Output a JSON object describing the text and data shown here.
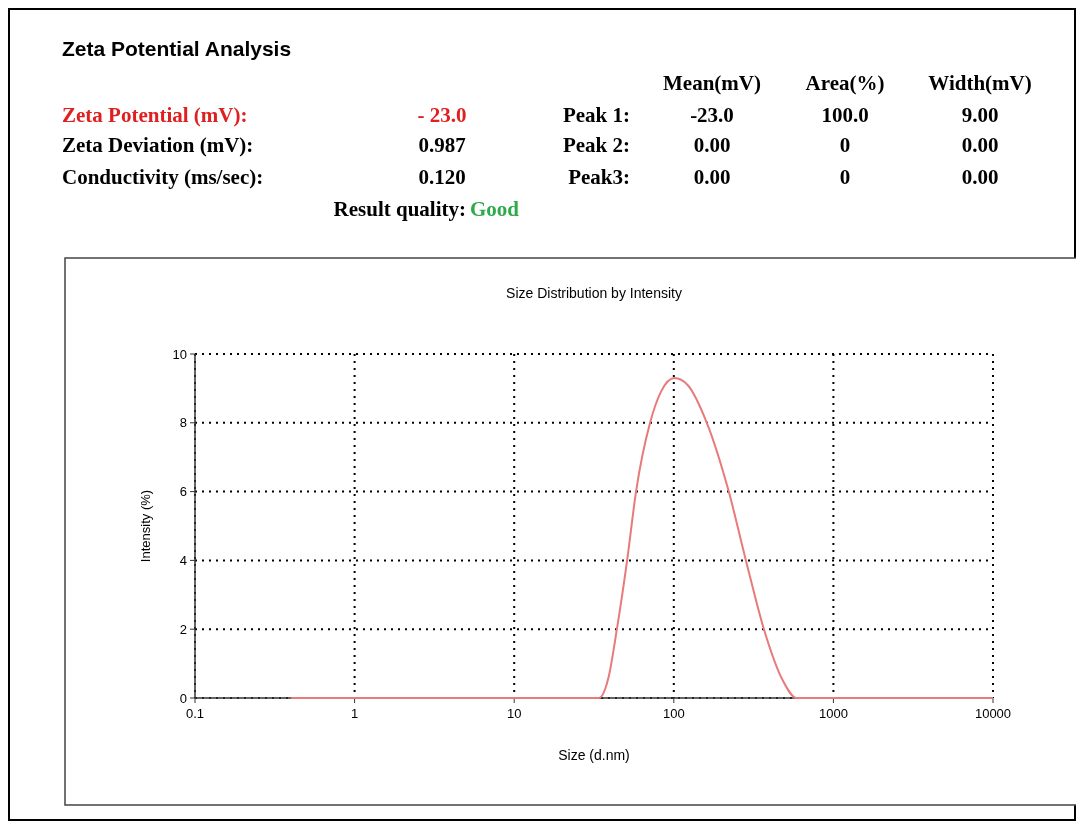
{
  "chart_data": [
    {
      "type": "other",
      "title": "Zeta Potential Analysis",
      "annotations": [
        "Mean(mV)",
        "Area(%)",
        "Width(mV)",
        "Zeta Potential (mV):",
        "- 23.0",
        "Peak 1:",
        "-23.0",
        "100.0",
        "9.00",
        "Zeta Deviation (mV):",
        "0.987",
        "Peak 2:",
        "0.00",
        "0",
        "0.00",
        "Conductivity (ms/sec):",
        "0.120",
        "Peak3:",
        "0.00",
        "0",
        "0.00",
        "Result quality:",
        "Good"
      ]
    },
    {
      "type": "line",
      "title": "Size Distribution by Intensity",
      "xlabel": "Size (d.nm)",
      "ylabel": "Intensity (%)",
      "log": "x",
      "xlim": [
        0.1,
        10000
      ],
      "xticks": [
        0.1,
        1,
        10,
        100,
        1000,
        10000
      ],
      "ylim": [
        0,
        10
      ],
      "yticks": [
        0,
        2,
        4,
        6,
        8,
        10
      ],
      "grid": true,
      "line_style": "solid",
      "series": [
        {
          "color": "#e87a7a",
          "x": [
            0.4,
            34,
            39,
            44,
            51,
            58,
            71,
            83,
            101,
            122,
            161,
            221,
            283,
            367,
            483,
            587,
            10000
          ],
          "values": [
            0,
            0,
            0.6,
            2,
            4,
            6,
            8,
            8.9,
            9.3,
            9.1,
            8,
            6,
            4,
            2,
            0.5,
            0,
            0
          ]
        }
      ]
    }
  ]
}
